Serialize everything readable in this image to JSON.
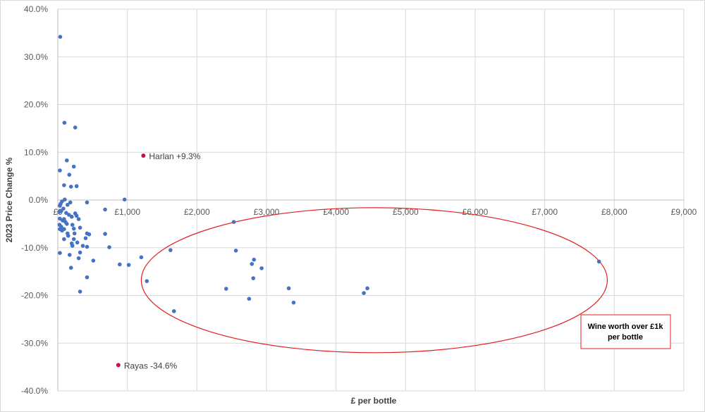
{
  "chart_data": {
    "type": "scatter",
    "xlabel": "£ per bottle",
    "ylabel": "2023 Price Change %",
    "xlim": [
      0,
      9000
    ],
    "ylim": [
      -40,
      40
    ],
    "x_ticks": [
      0,
      1000,
      2000,
      3000,
      4000,
      5000,
      6000,
      7000,
      8000,
      9000
    ],
    "x_tick_labels": [
      "£0",
      "£1,000",
      "£2,000",
      "£3,000",
      "£4,000",
      "£5,000",
      "£6,000",
      "£7,000",
      "£8,000",
      "£9,000"
    ],
    "y_ticks": [
      40,
      30,
      20,
      10,
      0,
      -10,
      -20,
      -30,
      -40
    ],
    "y_tick_labels": [
      "40.0%",
      "30.0%",
      "20.0%",
      "10.0%",
      "0.0%",
      "-10.0%",
      "-20.0%",
      "-30.0%",
      "-40.0%"
    ],
    "grid": true,
    "colors": {
      "points": "#4472c4",
      "highlight": "#c0134d",
      "ellipse": "#e02020",
      "gridline": "#d9d9d9"
    },
    "points": [
      [
        35,
        34.2
      ],
      [
        95,
        16.2
      ],
      [
        250,
        15.2
      ],
      [
        130,
        8.3
      ],
      [
        30,
        6.2
      ],
      [
        230,
        7
      ],
      [
        165,
        5.3
      ],
      [
        90,
        3.1
      ],
      [
        190,
        2.8
      ],
      [
        270,
        2.9
      ],
      [
        960,
        0.1
      ],
      [
        100,
        0.1
      ],
      [
        60,
        -0.3
      ],
      [
        40,
        -0.8
      ],
      [
        140,
        -1
      ],
      [
        180,
        -0.5
      ],
      [
        420,
        -0.5
      ],
      [
        30,
        -1.2
      ],
      [
        80,
        -1.8
      ],
      [
        680,
        -2
      ],
      [
        20,
        -2.5
      ],
      [
        50,
        -2.3
      ],
      [
        120,
        -2.7
      ],
      [
        160,
        -3.1
      ],
      [
        250,
        -2.8
      ],
      [
        270,
        -3.3
      ],
      [
        200,
        -3.5
      ],
      [
        30,
        -3.9
      ],
      [
        70,
        -4.3
      ],
      [
        110,
        -4.6
      ],
      [
        90,
        -4
      ],
      [
        300,
        -4
      ],
      [
        25,
        -5.2
      ],
      [
        50,
        -5.6
      ],
      [
        130,
        -5
      ],
      [
        210,
        -5.2
      ],
      [
        30,
        -6.1
      ],
      [
        60,
        -6.4
      ],
      [
        90,
        -6.1
      ],
      [
        230,
        -6
      ],
      [
        320,
        -5.8
      ],
      [
        140,
        -7
      ],
      [
        150,
        -7.5
      ],
      [
        240,
        -7
      ],
      [
        420,
        -7
      ],
      [
        450,
        -7.2
      ],
      [
        680,
        -7.1
      ],
      [
        90,
        -8.2
      ],
      [
        230,
        -8.2
      ],
      [
        400,
        -8
      ],
      [
        280,
        -8.9
      ],
      [
        200,
        -9.1
      ],
      [
        210,
        -9.6
      ],
      [
        360,
        -9.6
      ],
      [
        420,
        -9.8
      ],
      [
        740,
        -9.9
      ],
      [
        320,
        -11
      ],
      [
        30,
        -11.1
      ],
      [
        170,
        -11.5
      ],
      [
        300,
        -12.2
      ],
      [
        510,
        -12.7
      ],
      [
        1200,
        -12
      ],
      [
        890,
        -13.5
      ],
      [
        1020,
        -13.6
      ],
      [
        190,
        -14.2
      ],
      [
        420,
        -16.2
      ],
      [
        1280,
        -17
      ],
      [
        320,
        -19.2
      ],
      [
        1620,
        -10.5
      ],
      [
        1670,
        -23.3
      ],
      [
        2560,
        -10.6
      ],
      [
        2530,
        -4.6
      ],
      [
        2820,
        -12.5
      ],
      [
        2790,
        -13.4
      ],
      [
        2930,
        -14.3
      ],
      [
        2810,
        -16.4
      ],
      [
        2420,
        -18.6
      ],
      [
        2750,
        -20.7
      ],
      [
        3320,
        -18.5
      ],
      [
        3390,
        -21.5
      ],
      [
        4400,
        -19.5
      ],
      [
        4450,
        -18.5
      ],
      [
        7780,
        -12.9
      ]
    ],
    "highlights": [
      {
        "x": 1230,
        "y": 9.3,
        "label": "Harlan +9.3%"
      },
      {
        "x": 870,
        "y": -34.6,
        "label": "Rayas -34.6%"
      }
    ],
    "ellipse": {
      "cx": 4550,
      "cy": -16.8,
      "rx": 3350,
      "ry": 15.2
    },
    "callout": {
      "lines": [
        "Wine worth over £1k",
        "per bottle"
      ],
      "placement": "bottom-right"
    }
  }
}
